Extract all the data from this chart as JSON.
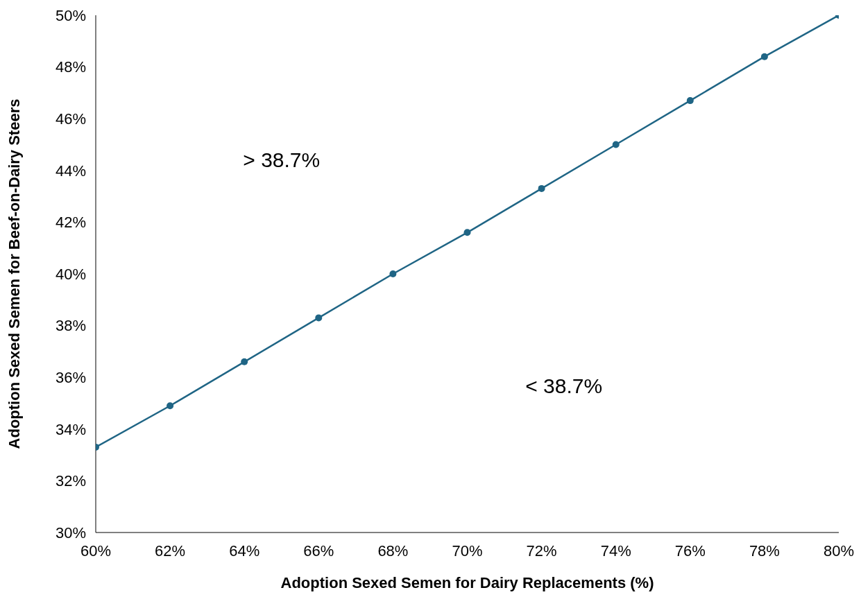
{
  "chart_data": {
    "type": "line",
    "xlabel": "Adoption Sexed Semen for Dairy Replacements (%)",
    "ylabel": "Adoption Sexed Semen for Beef-on-Dairy Steers",
    "x": [
      60,
      62,
      64,
      66,
      68,
      70,
      72,
      74,
      76,
      78,
      80
    ],
    "series": [
      {
        "color": "#1f6585",
        "values": [
          33.3,
          34.9,
          36.6,
          38.3,
          40.0,
          41.6,
          43.3,
          45.0,
          46.7,
          48.4,
          50.0
        ]
      }
    ],
    "xlim": [
      60,
      80
    ],
    "xticks": [
      {
        "value": 60,
        "label": "60%"
      },
      {
        "value": 62,
        "label": "62%"
      },
      {
        "value": 64,
        "label": "64%"
      },
      {
        "value": 66,
        "label": "66%"
      },
      {
        "value": 68,
        "label": "68%"
      },
      {
        "value": 70,
        "label": "70%"
      },
      {
        "value": 72,
        "label": "72%"
      },
      {
        "value": 74,
        "label": "74%"
      },
      {
        "value": 76,
        "label": "76%"
      },
      {
        "value": 78,
        "label": "78%"
      },
      {
        "value": 80,
        "label": "80%"
      }
    ],
    "ylim": [
      30,
      50
    ],
    "yticks": [
      {
        "value": 30,
        "label": "30%"
      },
      {
        "value": 32,
        "label": "32%"
      },
      {
        "value": 34,
        "label": "34%"
      },
      {
        "value": 36,
        "label": "36%"
      },
      {
        "value": 38,
        "label": "38%"
      },
      {
        "value": 40,
        "label": "40%"
      },
      {
        "value": 42,
        "label": "42%"
      },
      {
        "value": 44,
        "label": "44%"
      },
      {
        "value": 46,
        "label": "46%"
      },
      {
        "value": 48,
        "label": "48%"
      },
      {
        "value": 50,
        "label": "50%"
      }
    ],
    "annotations": [
      "> 38.7%",
      "< 38.7%"
    ],
    "grid": false,
    "legend": false,
    "marker": "circle",
    "line_style": "solid"
  }
}
